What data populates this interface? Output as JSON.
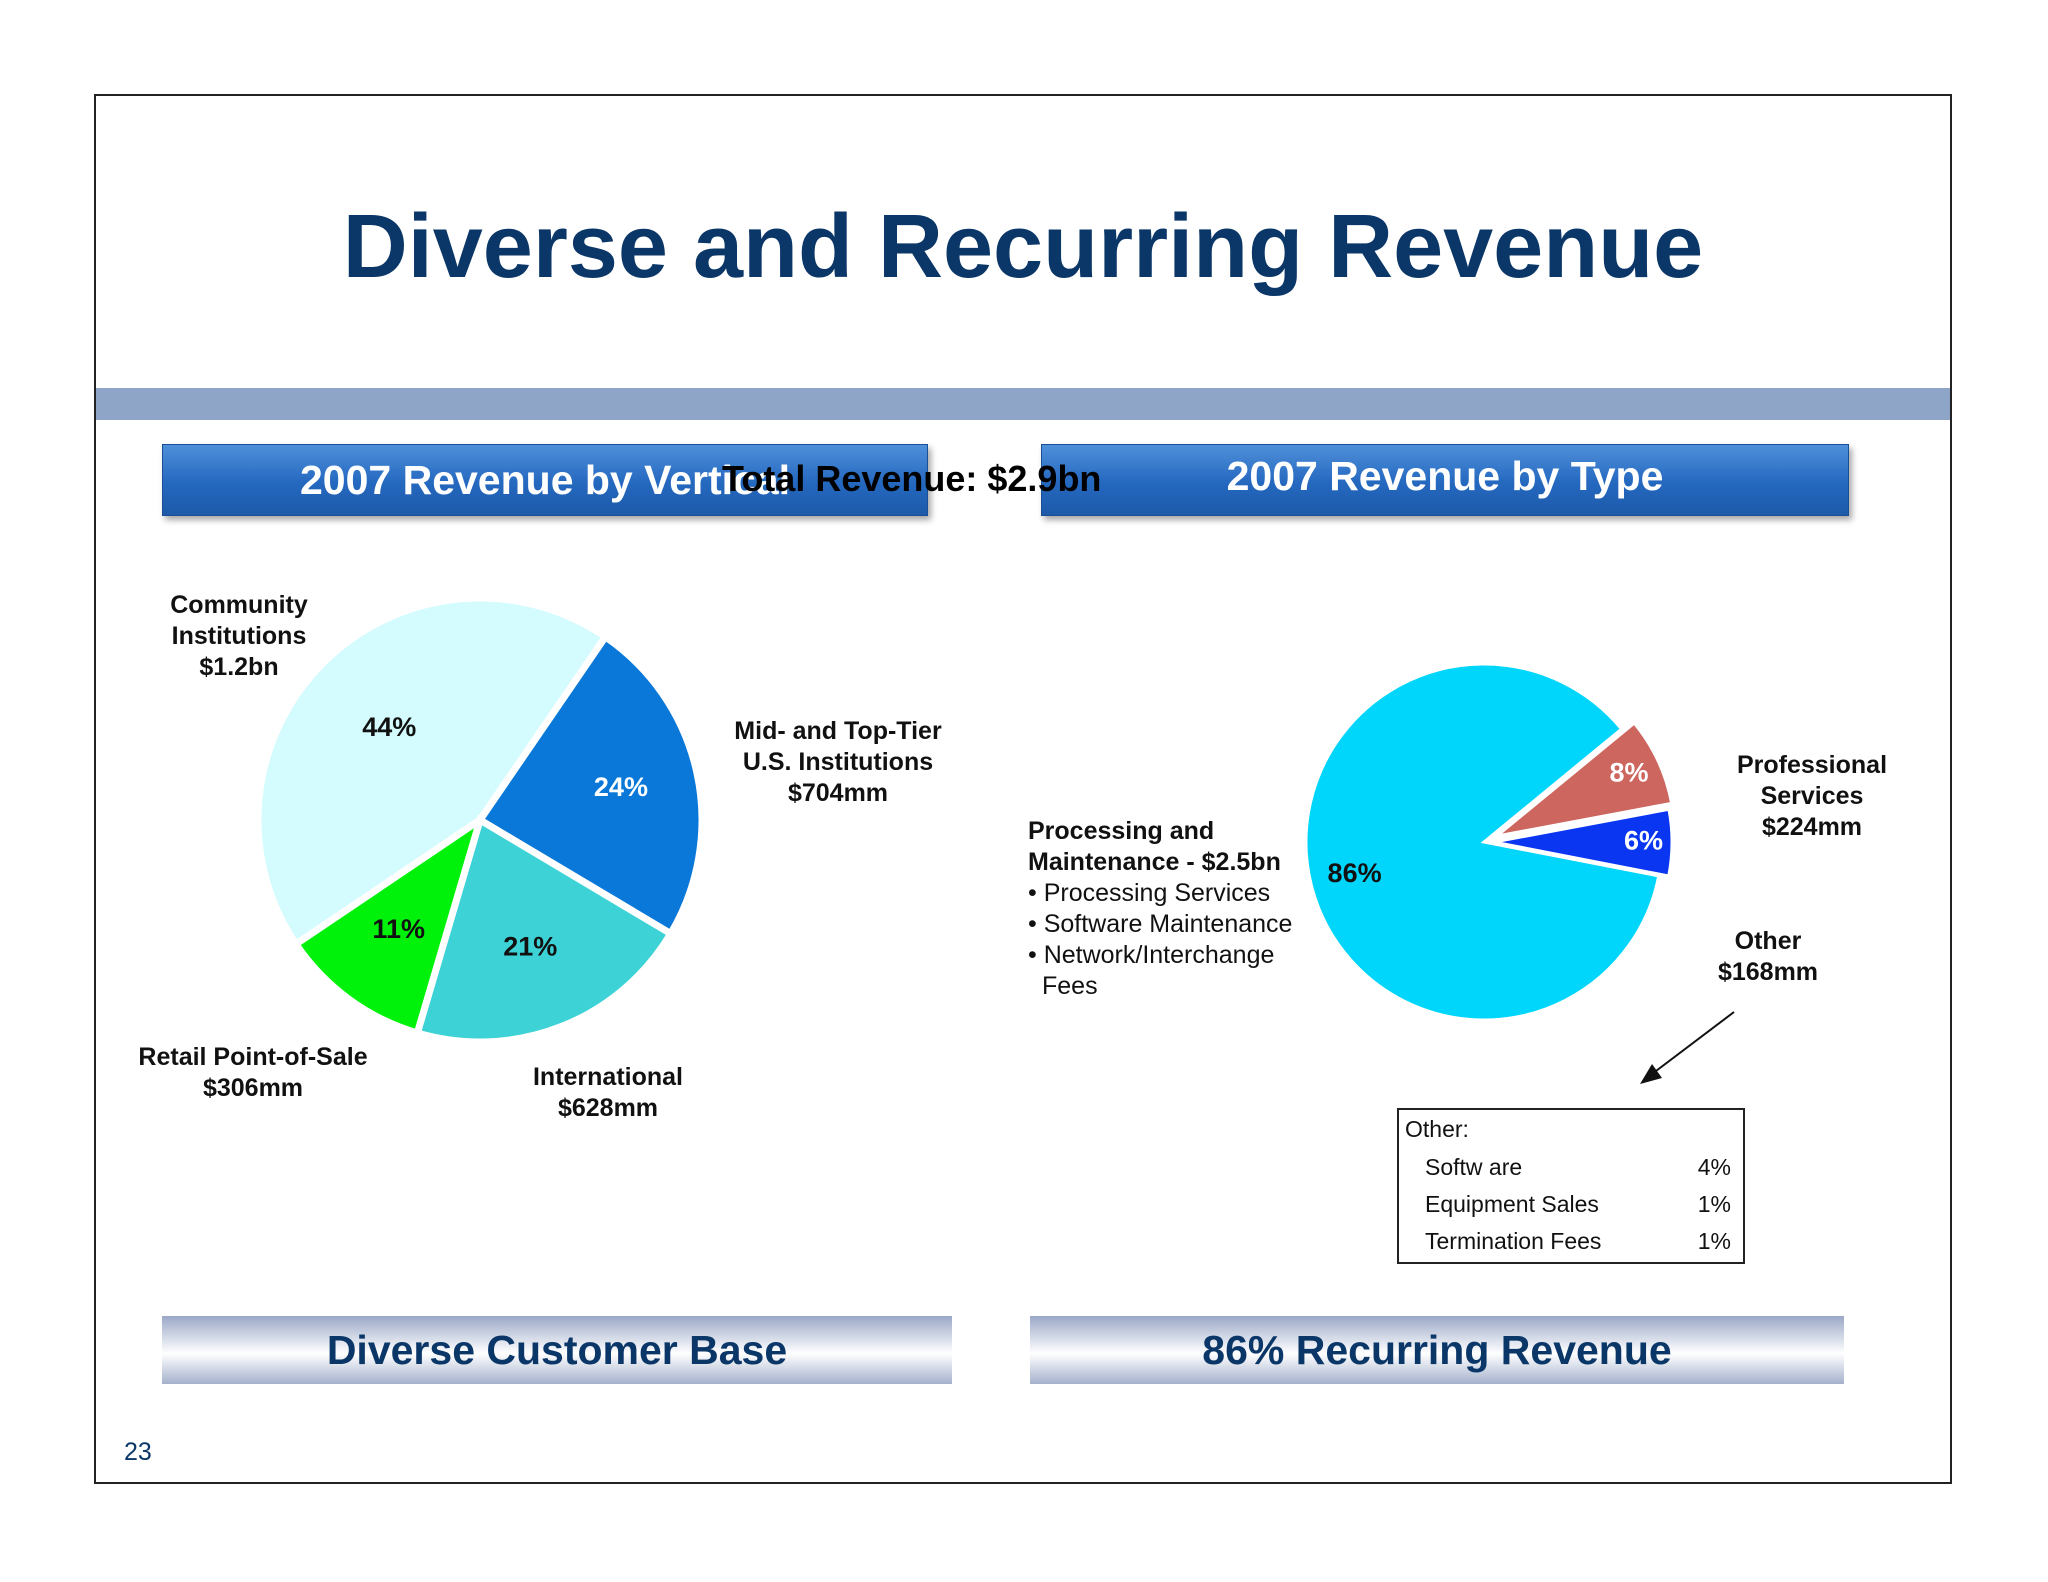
{
  "slide": {
    "title": "Diverse and Recurring Revenue",
    "page_number": "23",
    "total_revenue": "Total Revenue: $2.9bn",
    "left_header": "2007 Revenue by Vertical",
    "right_header": "2007 Revenue by Type",
    "left_footer": "Diverse Customer Base",
    "right_footer": "86% Recurring Revenue"
  },
  "left_labels": {
    "community": [
      "Community",
      "Institutions",
      "$1.2bn"
    ],
    "midtier": [
      "Mid- and Top-Tier",
      "U.S. Institutions",
      "$704mm"
    ],
    "international": [
      "International",
      "$628mm"
    ],
    "retail": [
      "Retail Point-of-Sale",
      "$306mm"
    ]
  },
  "right_labels": {
    "processing_title": [
      "Processing and",
      "Maintenance - $2.5bn"
    ],
    "processing_items": [
      "• Processing Services",
      "• Software Maintenance",
      "• Network/Interchange",
      "  Fees"
    ],
    "professional": [
      "Professional",
      "Services",
      "$224mm"
    ],
    "other": [
      "Other",
      "$168mm"
    ]
  },
  "other_box": {
    "title": "Other:",
    "rows": [
      {
        "label": "Softw are",
        "value": "4%"
      },
      {
        "label": "Equipment Sales",
        "value": "1%"
      },
      {
        "label": "Termination Fees",
        "value": "1%"
      }
    ]
  },
  "chart_data": [
    {
      "type": "pie",
      "title": "2007 Revenue by Vertical",
      "categories": [
        "Community Institutions",
        "Mid- and Top-Tier U.S. Institutions",
        "International",
        "Retail Point-of-Sale"
      ],
      "values": [
        44,
        24,
        21,
        11
      ],
      "labels": [
        "44%",
        "24%",
        "21%",
        "11%"
      ],
      "colors": [
        "#d4fbfd",
        "#0a78d8",
        "#3dd3d6",
        "#00f20a"
      ],
      "label_colors": [
        "#111111",
        "#ffffff",
        "#111111",
        "#111111"
      ]
    },
    {
      "type": "pie",
      "title": "2007 Revenue by Type",
      "categories": [
        "Processing and Maintenance",
        "Professional Services",
        "Other"
      ],
      "values": [
        86,
        8,
        6
      ],
      "labels": [
        "86%",
        "8%",
        "6%"
      ],
      "colors": [
        "#00d6fb",
        "#cc665f",
        "#0a36f2"
      ],
      "label_colors": [
        "#111111",
        "#ffffff",
        "#ffffff"
      ],
      "exploded": [
        "Professional Services",
        "Other"
      ]
    }
  ]
}
